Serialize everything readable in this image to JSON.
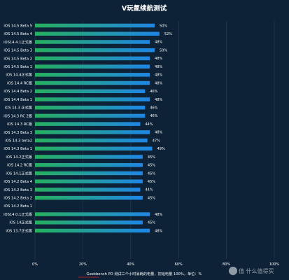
{
  "chart_data": {
    "type": "bar",
    "orientation": "horizontal",
    "title": "V玩氪续航测试",
    "categories": [
      "iOS 14.5 Beta 5",
      "iOS 14.5 Beta 4",
      "iOS14.4.1正式版",
      "iOS 14.5 Beta 3",
      "iOS 14.5 Beta 2",
      "iOS 14.5 Beta 1",
      "iOS 14.4正式版",
      "iOS 14.4 RC版",
      "iOS 14.4 Beta 2",
      "iOS 14.4 Beta 1",
      "iOS 14.3 正式版",
      "iOS 14.3 RC 2版",
      "iOS 14.3 RC版",
      "iOS 14.3 Beta 3",
      "iOS 14.3 beta2",
      "iOS 14.3 Beta 1",
      "iOS 14.2正式版",
      "iOS 14.2 RC版",
      "iOS 14.1正式版",
      "iOS 14.2 Beta 4",
      "iOS 14.2 Beta 3",
      "iOS 14.2 Beta 2",
      "iOS 14.2 Beta 1",
      "iOS14.0.1正式版",
      "iOS 14正式版",
      "iOS 13.7正式版"
    ],
    "values": [
      50,
      52,
      48,
      50,
      48,
      48,
      48,
      48,
      46,
      48,
      46,
      46,
      44,
      48,
      47,
      49,
      45,
      45,
      45,
      45,
      44,
      45,
      null,
      48,
      45,
      48
    ],
    "value_labels": [
      "50%",
      "52%",
      "48%",
      "50%",
      "48%",
      "48%",
      "48%",
      "48%",
      "46%",
      "48%",
      "46%",
      "46%",
      "44%",
      "48%",
      "47%",
      "49%",
      "45%",
      "45%",
      "45%",
      "45%",
      "44%",
      "45%",
      "",
      "48%",
      "45%",
      "48%"
    ],
    "x_ticks": [
      "0%",
      "20%",
      "40%",
      "60%",
      "80%",
      "100%"
    ],
    "xlim": [
      0,
      100
    ],
    "grid": true,
    "footnote": "Geekbench PD 测试三个小时消耗的电量，初始电量 100%，单位：%",
    "colors": {
      "background": "#0d2237",
      "bar_start": "#27b05e",
      "bar_end": "#1f86e6",
      "text": "#ffffff",
      "grid": "#2a3f55",
      "footnote_underline": "#e02020"
    }
  },
  "watermark": "值 什么值得买"
}
